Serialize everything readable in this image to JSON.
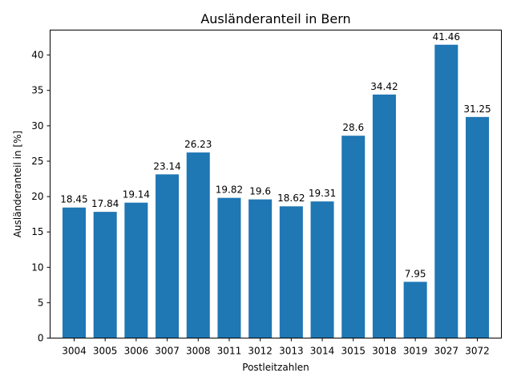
{
  "chart_data": {
    "type": "bar",
    "title": "Ausländeranteil in Bern",
    "xlabel": "Postleitzahlen",
    "ylabel": "Ausländeranteil in [%]",
    "categories": [
      "3004",
      "3005",
      "3006",
      "3007",
      "3008",
      "3011",
      "3012",
      "3013",
      "3014",
      "3015",
      "3018",
      "3019",
      "3027",
      "3072"
    ],
    "values": [
      18.45,
      17.84,
      19.14,
      23.14,
      26.23,
      19.82,
      19.6,
      18.62,
      19.31,
      28.6,
      34.42,
      7.95,
      41.46,
      31.25
    ],
    "data_labels": [
      "18.45",
      "17.84",
      "19.14",
      "23.14",
      "26.23",
      "19.82",
      "19.6",
      "18.62",
      "19.31",
      "28.6",
      "34.42",
      "7.95",
      "41.46",
      "31.25"
    ],
    "yticks": [
      0,
      5,
      10,
      15,
      20,
      25,
      30,
      35,
      40
    ],
    "ylim": [
      0,
      43.53
    ],
    "grid": false,
    "bar_color": "#1f77b4"
  }
}
